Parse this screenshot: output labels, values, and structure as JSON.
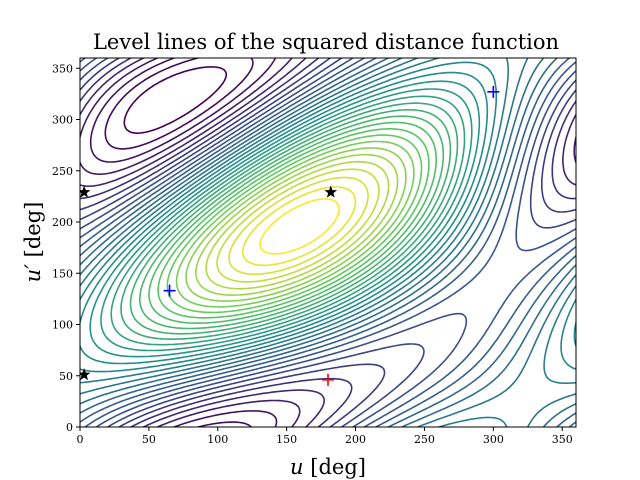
{
  "chart_data": {
    "type": "contour",
    "title": "Level lines of the squared distance function",
    "xlabel": {
      "var": "u",
      "unit": " [deg]"
    },
    "ylabel": {
      "var": "u′",
      "unit": " [deg]"
    },
    "xlim": [
      0,
      360
    ],
    "ylim": [
      0,
      360
    ],
    "xticks": [
      0,
      50,
      100,
      150,
      200,
      250,
      300,
      350
    ],
    "yticks": [
      0,
      50,
      100,
      150,
      200,
      250,
      300,
      350
    ],
    "grid": false,
    "colormap": "viridis",
    "contour_levels": 34,
    "markers": [
      {
        "name": "maximum",
        "symbol": "+",
        "color": "#ff0000",
        "x": 180,
        "y": 46
      },
      {
        "name": "minimum-1",
        "symbol": "+",
        "color": "#0000ff",
        "x": 65,
        "y": 133
      },
      {
        "name": "minimum-2",
        "symbol": "+",
        "color": "#0000ff",
        "x": 300,
        "y": 327
      },
      {
        "name": "saddle-1",
        "symbol": "star",
        "color": "#000000",
        "x": 3,
        "y": 51
      },
      {
        "name": "saddle-2",
        "symbol": "star",
        "color": "#000000",
        "x": 3,
        "y": 229
      },
      {
        "name": "saddle-3",
        "symbol": "star",
        "color": "#000000",
        "x": 182,
        "y": 229
      }
    ]
  }
}
